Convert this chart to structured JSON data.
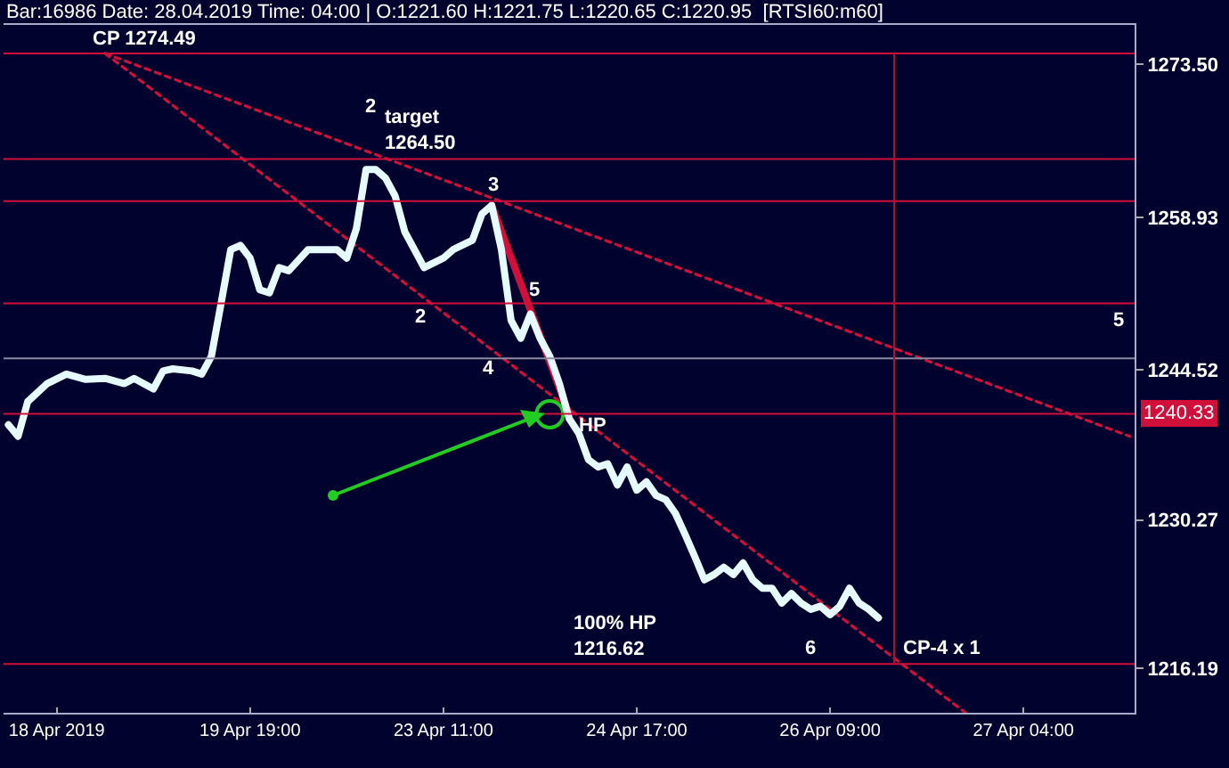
{
  "chart_data": {
    "type": "line",
    "title": "Bar:16986 Date: 28.04.2019 Time: 04:00 | O:1221.60 H:1221.75 L:1220.65 C:1220.95  [RTSI60:m60]",
    "categories": [
      null,
      null,
      null,
      null,
      null,
      "18 Apr 2019",
      null,
      null,
      null,
      null,
      null,
      null,
      null,
      null,
      null,
      null,
      null,
      null,
      null,
      null,
      null,
      null,
      null,
      null,
      null,
      "19 Apr 19:00",
      null,
      null,
      null,
      null,
      null,
      null,
      null,
      null,
      null,
      null,
      null,
      null,
      null,
      null,
      null,
      null,
      null,
      null,
      null,
      "23 Apr 11:00",
      null,
      null,
      null,
      null,
      null,
      null,
      null,
      null,
      null,
      null,
      null,
      null,
      null,
      null,
      null,
      null,
      null,
      null,
      null,
      "24 Apr 17:00",
      null,
      null,
      null,
      null,
      null,
      null,
      null,
      null,
      null,
      null,
      null,
      null,
      null,
      null,
      null,
      null,
      null,
      null,
      null,
      "26 Apr 09:00",
      null,
      null,
      null,
      null,
      null,
      null,
      null,
      null,
      null,
      null,
      null,
      null,
      null,
      null,
      null,
      null,
      null,
      null,
      null,
      "27 Apr 04:00",
      null,
      null,
      null,
      null,
      null,
      null,
      null,
      null,
      null,
      null,
      null
    ],
    "ylim": [
      1212.0,
      1277.2
    ],
    "yticks": [
      {
        "value": 1273.5,
        "label": "1273.50"
      },
      {
        "value": 1258.93,
        "label": "1258.93"
      },
      {
        "value": 1244.52,
        "label": "1244.52"
      },
      {
        "value": 1230.27,
        "label": "1230.27"
      },
      {
        "value": 1216.19,
        "label": "1216.19"
      }
    ],
    "grid": false,
    "line_style": "solid",
    "marker": "none",
    "series": [
      {
        "color": "#e6fbff",
        "values": [
          1239.3,
          1238.2,
          1241.5,
          null,
          1243.2,
          null,
          1244.1,
          null,
          1243.6,
          null,
          1243.7,
          null,
          1243.2,
          1243.7,
          null,
          1242.7,
          1244.4,
          1244.6,
          null,
          1244.4,
          1244.1,
          1245.8,
          1250.8,
          1255.9,
          1256.3,
          1255.1,
          1252.1,
          1251.8,
          1254.2,
          1253.9,
          null,
          1255.9,
          1255.9,
          null,
          1255.9,
          1255.1,
          1257.9,
          1263.5,
          1263.5,
          1262.7,
          1261.0,
          1257.6,
          1255.9,
          1254.2,
          null,
          1255.1,
          1255.9,
          null,
          1256.8,
          1259.3,
          1260.1,
          1255.9,
          1249.2,
          1247.5,
          1249.8,
          1247.5,
          1245.8,
          1243.2,
          1239.9,
          1238.5,
          1236.0,
          1235.3,
          1235.6,
          1233.6,
          1235.3,
          1233.1,
          1233.9,
          1232.6,
          1232.2,
          1230.9,
          1228.9,
          1226.8,
          1224.6,
          1225.1,
          1225.8,
          1225.1,
          1226.2,
          1224.6,
          1223.8,
          1223.8,
          1222.4,
          1223.3,
          1222.4,
          1221.8,
          1222.1,
          1221.3,
          1222.1,
          1223.8,
          1222.4,
          1221.8,
          1221.0,
          null,
          null,
          null,
          null,
          null,
          null,
          null,
          null,
          null,
          null,
          null,
          null,
          null,
          null,
          null,
          null,
          null,
          null,
          null,
          null,
          null,
          null,
          null,
          null,
          null,
          null
        ]
      },
      {
        "color": "#d0103a",
        "line_style": "dotted",
        "values": [
          null,
          null,
          null,
          null,
          null,
          null,
          null,
          null,
          null,
          null,
          1274.5,
          null,
          null,
          null,
          null,
          null,
          null,
          null,
          null,
          null,
          null,
          null,
          null,
          null,
          null,
          null,
          null,
          null,
          null,
          null,
          null,
          null,
          null,
          null,
          null,
          null,
          null,
          null,
          null,
          null,
          null,
          null,
          null,
          null,
          null,
          null,
          null,
          null,
          null,
          null,
          null,
          null,
          null,
          null,
          null,
          null,
          null,
          null,
          null,
          null,
          null,
          null,
          null,
          null,
          null,
          null,
          null,
          null,
          null,
          null,
          null,
          null,
          null,
          null,
          null,
          null,
          null,
          null,
          null,
          null,
          null,
          null,
          null,
          null,
          null,
          null,
          null,
          null,
          null,
          null,
          null,
          null,
          null,
          null,
          null,
          null,
          null,
          null,
          null,
          1212.0,
          null,
          null,
          null,
          null,
          null,
          null,
          null,
          null,
          null,
          null,
          null,
          null,
          null,
          null,
          null,
          null,
          null
        ]
      },
      {
        "color": "#d0103a",
        "line_style": "dotted",
        "values": [
          null,
          null,
          null,
          null,
          null,
          null,
          null,
          null,
          null,
          null,
          1274.5,
          null,
          null,
          null,
          null,
          null,
          null,
          null,
          null,
          null,
          null,
          null,
          null,
          null,
          null,
          null,
          null,
          null,
          null,
          null,
          null,
          null,
          null,
          null,
          null,
          null,
          null,
          null,
          null,
          null,
          null,
          null,
          null,
          null,
          null,
          null,
          null,
          null,
          null,
          null,
          null,
          null,
          null,
          null,
          null,
          null,
          null,
          null,
          null,
          null,
          null,
          null,
          null,
          null,
          null,
          null,
          null,
          null,
          null,
          null,
          null,
          null,
          null,
          null,
          null,
          null,
          null,
          null,
          null,
          null,
          null,
          null,
          null,
          null,
          null,
          null,
          null,
          null,
          null,
          null,
          null,
          null,
          null,
          null,
          null,
          null,
          null,
          null,
          null,
          null,
          null,
          null,
          null,
          null,
          null,
          null,
          null,
          null,
          null,
          null,
          null,
          null,
          null,
          null,
          null,
          null,
          1238.2
        ]
      },
      {
        "color": "#d0103a",
        "values": [
          null,
          null,
          null,
          null,
          null,
          null,
          null,
          null,
          null,
          null,
          null,
          null,
          null,
          null,
          null,
          null,
          null,
          null,
          null,
          null,
          null,
          null,
          null,
          null,
          null,
          null,
          null,
          null,
          null,
          null,
          null,
          null,
          null,
          null,
          null,
          null,
          null,
          null,
          null,
          null,
          null,
          null,
          null,
          null,
          null,
          null,
          null,
          null,
          null,
          null,
          1260.1,
          null,
          null,
          null,
          null,
          null,
          null,
          null,
          1240.3,
          null,
          null,
          null,
          null,
          null,
          null,
          null,
          null,
          null,
          null,
          null,
          null,
          null,
          null,
          null,
          null,
          null,
          null,
          null,
          null,
          null,
          null,
          null,
          null,
          null,
          null,
          null,
          null,
          null,
          null,
          null,
          null,
          null,
          null,
          null,
          null,
          null,
          null,
          null,
          null,
          null,
          null,
          null,
          null,
          null,
          null,
          null,
          null,
          null,
          null,
          null,
          null,
          null,
          null,
          null,
          null,
          null,
          null
        ]
      },
      {
        "type": "scatter",
        "color": "#22cc22",
        "marker": "circle",
        "values": [
          null,
          null,
          null,
          null,
          null,
          null,
          null,
          null,
          null,
          null,
          null,
          null,
          null,
          null,
          null,
          null,
          null,
          null,
          null,
          null,
          null,
          null,
          null,
          null,
          null,
          null,
          null,
          null,
          null,
          null,
          null,
          null,
          null,
          null,
          null,
          null,
          null,
          null,
          null,
          null,
          null,
          null,
          null,
          null,
          null,
          null,
          null,
          null,
          null,
          null,
          null,
          null,
          null,
          null,
          null,
          null,
          1240.3,
          null,
          null,
          null,
          null,
          null,
          null,
          null,
          null,
          null,
          null,
          null,
          null,
          null,
          null,
          null,
          null,
          null,
          null,
          null,
          null,
          null,
          null,
          null,
          null,
          null,
          null,
          null,
          null,
          null,
          null,
          null,
          null,
          null,
          null,
          null,
          null,
          null,
          null,
          null,
          null,
          null,
          null,
          null,
          null,
          null,
          null,
          null,
          null,
          null,
          null,
          null,
          null,
          null,
          null,
          null,
          null,
          null,
          null,
          null,
          null
        ]
      }
    ],
    "ref_lines": [
      {
        "axis": "y",
        "value": 1274.49,
        "color": "#d0103a"
      },
      {
        "axis": "y",
        "value": 1264.5,
        "color": "#d0103a"
      },
      {
        "axis": "y",
        "value": 1260.5,
        "color": "#d0103a"
      },
      {
        "axis": "y",
        "value": 1250.8,
        "color": "#d0103a"
      },
      {
        "axis": "y",
        "value": 1245.6,
        "color": "#8a8aa0"
      },
      {
        "axis": "y",
        "value": 1240.33,
        "color": "#d0103a",
        "label": "1240.33"
      },
      {
        "axis": "y",
        "value": 1216.62,
        "color": "#d0103a"
      }
    ],
    "annotations": [
      "CP 1274.49",
      "target\n1264.50",
      "2",
      "3",
      "2",
      "5",
      "4",
      "HP",
      "5",
      "100% HP\n1216.62",
      "6",
      "CP-4 x 1"
    ]
  }
}
